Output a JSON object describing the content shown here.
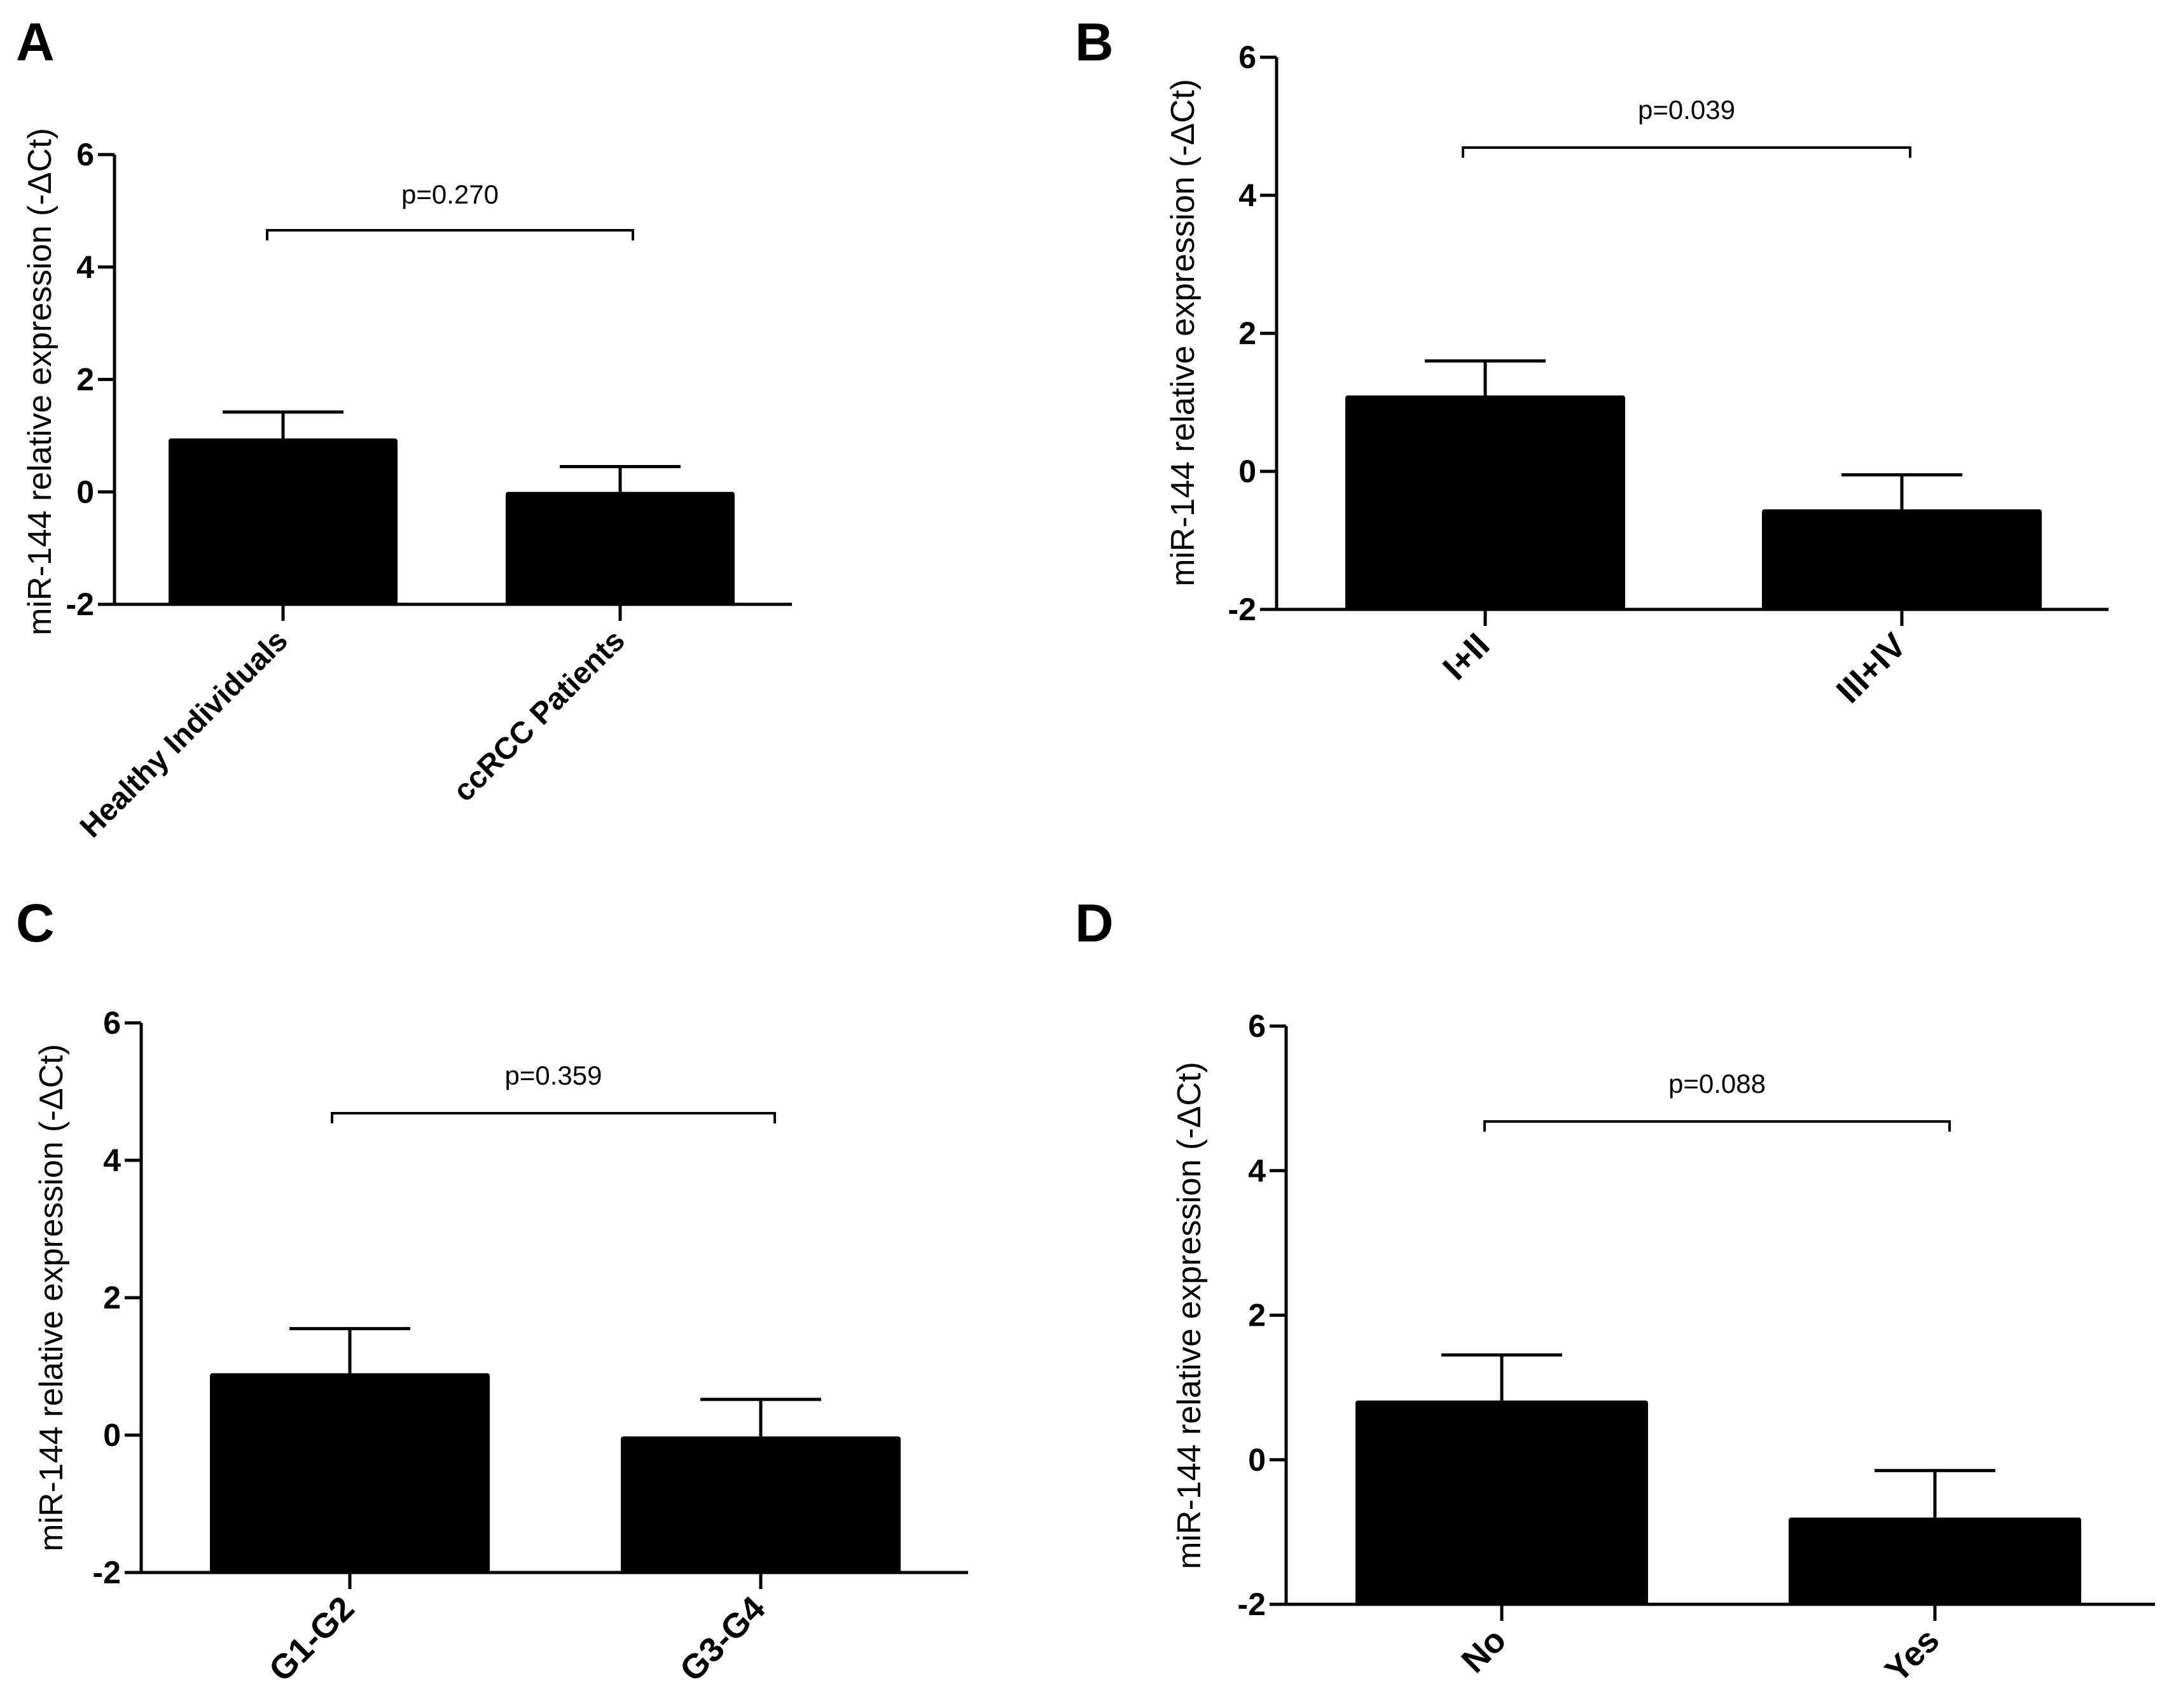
{
  "figure": {
    "panel_letters": [
      "A",
      "B",
      "C",
      "D"
    ]
  },
  "chart_data": [
    {
      "panel": "A",
      "type": "bar",
      "ylabel": "miR-144 relative expression (-ΔCt)",
      "ylim": [
        -2,
        6
      ],
      "yticks": [
        "-2",
        "0",
        "2",
        "4",
        "6"
      ],
      "categories": [
        "Healthy Individuals",
        "ccRCC Patients"
      ],
      "values": [
        0.95,
        0.0
      ],
      "error_upper": [
        1.42,
        0.45
      ],
      "annotation": "p=0.270",
      "bar_color": "#000000"
    },
    {
      "panel": "B",
      "type": "bar",
      "ylabel": "miR-144 relative expression (-ΔCt)",
      "ylim": [
        -2,
        6
      ],
      "yticks": [
        "-2",
        "0",
        "2",
        "4",
        "6"
      ],
      "categories": [
        "I+II",
        "III+IV"
      ],
      "values": [
        1.1,
        -0.55
      ],
      "error_upper": [
        1.6,
        -0.05
      ],
      "annotation": "p=0.039",
      "bar_color": "#000000"
    },
    {
      "panel": "C",
      "type": "bar",
      "ylabel": "miR-144 relative expression (-ΔCt)",
      "ylim": [
        -2,
        6
      ],
      "yticks": [
        "-2",
        "0",
        "2",
        "4",
        "6"
      ],
      "categories": [
        "G1-G2",
        "G3-G4"
      ],
      "values": [
        0.9,
        -0.02
      ],
      "error_upper": [
        1.55,
        0.52
      ],
      "annotation": "p=0.359",
      "bar_color": "#000000"
    },
    {
      "panel": "D",
      "type": "bar",
      "ylabel": "miR-144 relative expression (-ΔCt)",
      "ylim": [
        -2,
        6
      ],
      "yticks": [
        "-2",
        "0",
        "2",
        "4",
        "6"
      ],
      "categories": [
        "No",
        "Yes"
      ],
      "values": [
        0.82,
        -0.8
      ],
      "error_upper": [
        1.45,
        -0.15
      ],
      "annotation": "p=0.088",
      "bar_color": "#000000"
    }
  ]
}
